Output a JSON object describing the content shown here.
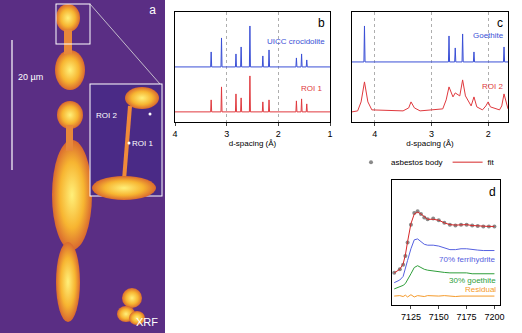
{
  "chart_data": [
    {
      "type": "image",
      "panel": "a",
      "scale_bar": "20 µm",
      "caption": "XRF",
      "regions": [
        "ROI 1",
        "ROI 2"
      ]
    },
    {
      "type": "line",
      "panel": "b",
      "x_label": "d-spacing (Å)",
      "xlim": [
        4,
        1
      ],
      "xticks": [
        4,
        3,
        2,
        1
      ],
      "ylim": [
        0,
        11
      ],
      "grid": true,
      "tick_labels": "x",
      "series": [
        {
          "name": "UICC crocidolite",
          "color": "#3a4fd6",
          "line_style": "solid",
          "x": [
            4.0,
            3.31,
            3.3,
            3.29,
            3.11,
            3.1,
            3.09,
            2.83,
            2.82,
            2.81,
            2.73,
            2.72,
            2.71,
            2.56,
            2.55,
            2.54,
            2.31,
            2.3,
            2.29,
            2.19,
            2.18,
            2.17,
            1.66,
            1.65,
            1.64,
            1.56,
            1.55,
            1.54,
            1.46,
            1.45,
            1.44,
            1.0
          ],
          "values": [
            5.5,
            5.5,
            7.0,
            5.5,
            5.5,
            8.4,
            5.5,
            5.5,
            6.8,
            5.5,
            5.5,
            7.5,
            5.5,
            5.5,
            9.6,
            5.5,
            5.5,
            6.6,
            5.5,
            5.5,
            7.2,
            5.5,
            5.5,
            6.4,
            5.5,
            5.5,
            6.8,
            5.5,
            5.5,
            6.2,
            5.5,
            5.5
          ]
        },
        {
          "name": "ROI 1",
          "color": "#e0393e",
          "line_style": "solid",
          "x": [
            4.0,
            3.31,
            3.3,
            3.29,
            3.11,
            3.1,
            3.09,
            2.83,
            2.82,
            2.81,
            2.73,
            2.72,
            2.71,
            2.56,
            2.55,
            2.54,
            2.31,
            2.3,
            2.29,
            2.19,
            2.18,
            2.17,
            1.66,
            1.65,
            1.64,
            1.56,
            1.55,
            1.54,
            1.46,
            1.45,
            1.44,
            1.0
          ],
          "values": [
            1.0,
            1.0,
            2.2,
            1.0,
            1.0,
            3.5,
            1.0,
            1.0,
            2.8,
            1.0,
            1.0,
            2.4,
            1.0,
            1.0,
            4.6,
            1.0,
            1.0,
            2.0,
            1.0,
            1.0,
            2.2,
            1.0,
            1.0,
            2.1,
            1.0,
            1.0,
            2.3,
            1.0,
            1.0,
            1.8,
            1.0,
            1.0
          ]
        }
      ],
      "annotations": [
        {
          "text": "UICC crocidolite",
          "x": 1.05,
          "y": 8.0
        },
        {
          "text": "ROI 1",
          "x": 1.11,
          "y": 3.3
        }
      ]
    },
    {
      "type": "line",
      "panel": "c",
      "x_label": "d-spacing (Å)",
      "xlim": [
        4.4,
        1.65
      ],
      "xticks": [
        4,
        3,
        2
      ],
      "ylim": [
        0,
        11
      ],
      "grid": true,
      "tick_labels": "x",
      "series": [
        {
          "name": "Goethite",
          "color": "#3a4fd6",
          "line_style": "solid",
          "x": [
            4.4,
            4.19,
            4.18,
            4.17,
            2.7,
            2.69,
            2.68,
            2.59,
            2.58,
            2.57,
            2.46,
            2.45,
            2.44,
            2.26,
            2.25,
            2.24,
            1.73,
            1.72,
            1.71,
            1.65
          ],
          "values": [
            6.0,
            6.0,
            9.6,
            6.0,
            6.0,
            8.6,
            6.0,
            6.0,
            7.4,
            6.0,
            6.0,
            8.8,
            6.0,
            6.0,
            7.0,
            6.0,
            6.0,
            7.5,
            6.0,
            6.0
          ]
        },
        {
          "name": "ROI 2",
          "color": "#e0393e",
          "line_style": "solid",
          "x": [
            4.4,
            4.3,
            4.24,
            4.18,
            4.12,
            4.05,
            3.5,
            3.4,
            3.36,
            3.3,
            3.2,
            2.8,
            2.74,
            2.69,
            2.62,
            2.58,
            2.5,
            2.45,
            2.4,
            2.3,
            2.25,
            2.2,
            2.1,
            2.04,
            2.0,
            1.96,
            1.8,
            1.76,
            1.72,
            1.68,
            1.65
          ],
          "values": [
            1.0,
            1.1,
            2.0,
            4.0,
            2.0,
            1.2,
            1.1,
            1.4,
            2.0,
            1.4,
            1.1,
            1.3,
            2.2,
            3.5,
            2.5,
            2.9,
            2.6,
            4.2,
            2.6,
            1.6,
            2.5,
            1.5,
            1.2,
            1.6,
            2.0,
            1.5,
            1.2,
            1.6,
            2.8,
            1.8,
            1.3
          ]
        }
      ],
      "annotations": [
        {
          "text": "Goethite",
          "x": 1.68,
          "y": 8.6
        },
        {
          "text": "ROI 2",
          "x": 1.7,
          "y": 3.5
        }
      ]
    },
    {
      "type": "line",
      "panel": "d",
      "legend": "top right",
      "xlim": [
        7108,
        7205
      ],
      "xticks": [
        7125,
        7150,
        7175,
        7200
      ],
      "ylim": [
        -1,
        13
      ],
      "grid": false,
      "tick_labels": "x",
      "x": [
        7110,
        7115,
        7118,
        7120,
        7122,
        7125,
        7128,
        7131,
        7134,
        7137,
        7140,
        7145,
        7150,
        7155,
        7160,
        7165,
        7170,
        7175,
        7180,
        7185,
        7190,
        7195,
        7200
      ],
      "series": [
        {
          "name": "asbestos body",
          "color": "#8a8a8a",
          "type": "scatter",
          "marker": "circle",
          "values": [
            2.6,
            3.0,
            3.5,
            4.5,
            6.0,
            8.0,
            9.3,
            9.5,
            9.2,
            8.8,
            8.6,
            8.7,
            8.5,
            8.2,
            8.0,
            7.9,
            8.0,
            8.0,
            7.9,
            7.85,
            7.8,
            7.8,
            7.8
          ]
        },
        {
          "name": "fit",
          "color": "#d62728",
          "type": "line",
          "line_style": "solid",
          "values": [
            2.6,
            3.0,
            3.6,
            4.6,
            6.1,
            8.1,
            9.2,
            9.4,
            9.2,
            8.9,
            8.6,
            8.6,
            8.5,
            8.2,
            8.0,
            7.95,
            8.0,
            8.0,
            7.9,
            7.85,
            7.8,
            7.8,
            7.8
          ]
        },
        {
          "name": "70% ferrihydrite",
          "color": "#5560e0",
          "type": "line",
          "line_style": "solid",
          "values": [
            1.5,
            1.8,
            2.2,
            3.0,
            4.0,
            5.3,
            6.3,
            6.4,
            6.1,
            5.8,
            5.7,
            5.7,
            5.6,
            5.4,
            5.2,
            5.2,
            5.3,
            5.3,
            5.2,
            5.15,
            5.1,
            5.1,
            5.1
          ]
        },
        {
          "name": "30% goethite",
          "color": "#2e9e3a",
          "type": "line",
          "line_style": "solid",
          "values": [
            0.8,
            1.0,
            1.2,
            1.4,
            1.8,
            2.5,
            3.2,
            3.4,
            3.2,
            3.0,
            2.9,
            2.8,
            2.7,
            2.65,
            2.6,
            2.6,
            2.6,
            2.6,
            2.5,
            2.5,
            2.5,
            2.5,
            2.5
          ]
        },
        {
          "name": "Residual",
          "color": "#f59a2a",
          "type": "line",
          "line_style": "solid",
          "values": [
            0.0,
            0.05,
            -0.05,
            0.1,
            -0.1,
            0.15,
            -0.1,
            0.05,
            0.0,
            -0.05,
            0.05,
            0.0,
            0.0,
            0.05,
            0.0,
            -0.05,
            0.0,
            0.0,
            0.05,
            0.0,
            0.0,
            0.0,
            0.0
          ]
        }
      ],
      "annotations": [
        {
          "text": "70% ferrihydrite",
          "x": 7203,
          "y": 4.1
        },
        {
          "text": "30% goethite",
          "x": 7203,
          "y": 1.8
        },
        {
          "text": "Residual",
          "x": 7203,
          "y": 0.75
        }
      ]
    }
  ]
}
